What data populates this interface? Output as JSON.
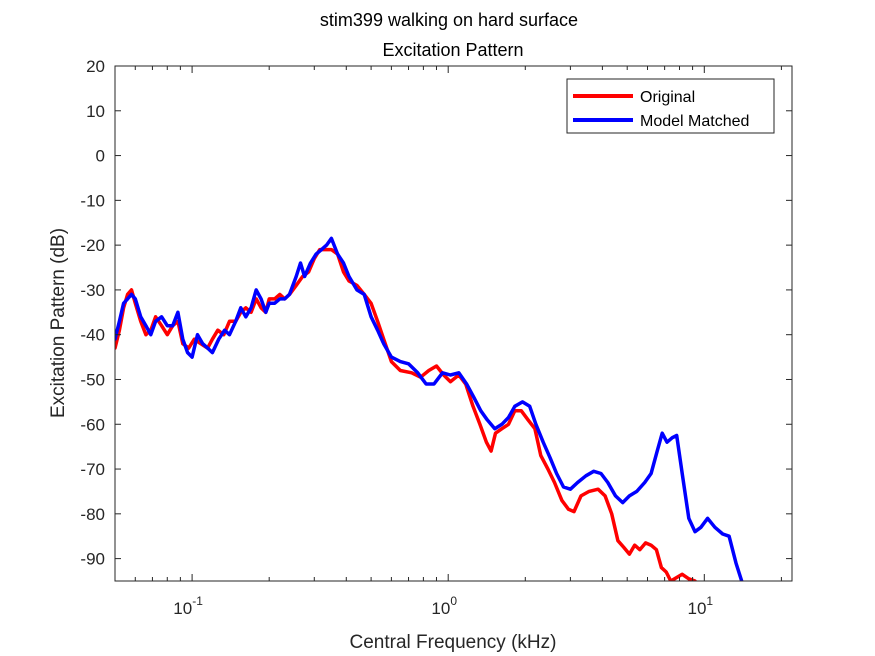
{
  "chart_data": {
    "type": "line",
    "title": "stim399 walking on hard surface",
    "subtitle": "Excitation Pattern",
    "xlabel": "Central Frequency (kHz)",
    "ylabel": "Excitation Pattern (dB)",
    "xscale": "log",
    "xlim": [
      0.05,
      22
    ],
    "ylim": [
      -95,
      20
    ],
    "x_ticks": [
      {
        "value": 0.1,
        "base": "10",
        "exp": "-1"
      },
      {
        "value": 1,
        "base": "10",
        "exp": "0"
      },
      {
        "value": 10,
        "base": "10",
        "exp": "1"
      }
    ],
    "y_ticks": [
      20,
      10,
      0,
      -10,
      -20,
      -30,
      -40,
      -50,
      -60,
      -70,
      -80,
      -90
    ],
    "grid": false,
    "legend_position": "top-right",
    "series": [
      {
        "name": "Original",
        "color": "#ff0000",
        "points": [
          [
            0.05,
            -43
          ],
          [
            0.052,
            -39
          ],
          [
            0.054,
            -34
          ],
          [
            0.056,
            -31
          ],
          [
            0.058,
            -30
          ],
          [
            0.06,
            -33
          ],
          [
            0.063,
            -37
          ],
          [
            0.066,
            -40
          ],
          [
            0.069,
            -39
          ],
          [
            0.072,
            -36
          ],
          [
            0.076,
            -38
          ],
          [
            0.08,
            -40
          ],
          [
            0.084,
            -38
          ],
          [
            0.088,
            -37
          ],
          [
            0.092,
            -42
          ],
          [
            0.097,
            -43
          ],
          [
            0.102,
            -41
          ],
          [
            0.108,
            -42
          ],
          [
            0.115,
            -43
          ],
          [
            0.12,
            -41
          ],
          [
            0.126,
            -39
          ],
          [
            0.133,
            -40
          ],
          [
            0.14,
            -37
          ],
          [
            0.148,
            -37
          ],
          [
            0.155,
            -35
          ],
          [
            0.162,
            -34
          ],
          [
            0.17,
            -35
          ],
          [
            0.178,
            -32
          ],
          [
            0.186,
            -34
          ],
          [
            0.194,
            -35
          ],
          [
            0.2,
            -32
          ],
          [
            0.21,
            -32
          ],
          [
            0.22,
            -31
          ],
          [
            0.23,
            -32
          ],
          [
            0.24,
            -31
          ],
          [
            0.255,
            -29
          ],
          [
            0.27,
            -27
          ],
          [
            0.285,
            -26
          ],
          [
            0.3,
            -23
          ],
          [
            0.315,
            -21
          ],
          [
            0.33,
            -21
          ],
          [
            0.35,
            -21
          ],
          [
            0.37,
            -22
          ],
          [
            0.39,
            -26
          ],
          [
            0.41,
            -28
          ],
          [
            0.44,
            -29
          ],
          [
            0.47,
            -31
          ],
          [
            0.5,
            -33
          ],
          [
            0.53,
            -37
          ],
          [
            0.56,
            -41
          ],
          [
            0.6,
            -46
          ],
          [
            0.65,
            -48
          ],
          [
            0.72,
            -48.5
          ],
          [
            0.78,
            -49.5
          ],
          [
            0.84,
            -48
          ],
          [
            0.9,
            -47
          ],
          [
            0.96,
            -49
          ],
          [
            1.02,
            -50.5
          ],
          [
            1.1,
            -49
          ],
          [
            1.17,
            -51
          ],
          [
            1.25,
            -56
          ],
          [
            1.33,
            -60
          ],
          [
            1.41,
            -64
          ],
          [
            1.47,
            -66
          ],
          [
            1.53,
            -62
          ],
          [
            1.62,
            -61
          ],
          [
            1.72,
            -60
          ],
          [
            1.82,
            -57
          ],
          [
            1.93,
            -57
          ],
          [
            2.05,
            -59
          ],
          [
            2.18,
            -61
          ],
          [
            2.3,
            -67
          ],
          [
            2.45,
            -70
          ],
          [
            2.6,
            -73
          ],
          [
            2.78,
            -77
          ],
          [
            2.95,
            -79
          ],
          [
            3.1,
            -79.5
          ],
          [
            3.3,
            -76
          ],
          [
            3.55,
            -75
          ],
          [
            3.85,
            -74.5
          ],
          [
            4.1,
            -76
          ],
          [
            4.35,
            -80
          ],
          [
            4.6,
            -86
          ],
          [
            4.85,
            -87.5
          ],
          [
            5.1,
            -89
          ],
          [
            5.35,
            -87
          ],
          [
            5.6,
            -88
          ],
          [
            5.9,
            -86.5
          ],
          [
            6.2,
            -87
          ],
          [
            6.5,
            -88
          ],
          [
            6.8,
            -92
          ],
          [
            7.1,
            -93
          ],
          [
            7.4,
            -95
          ],
          [
            8.2,
            -93.5
          ],
          [
            8.7,
            -94.5
          ],
          [
            9.2,
            -95
          ]
        ]
      },
      {
        "name": "Model Matched",
        "color": "#0000ff",
        "points": [
          [
            0.05,
            -41
          ],
          [
            0.052,
            -37
          ],
          [
            0.054,
            -33
          ],
          [
            0.056,
            -32
          ],
          [
            0.058,
            -31
          ],
          [
            0.06,
            -32
          ],
          [
            0.063,
            -36
          ],
          [
            0.066,
            -38
          ],
          [
            0.069,
            -40
          ],
          [
            0.072,
            -37
          ],
          [
            0.076,
            -36
          ],
          [
            0.08,
            -38
          ],
          [
            0.084,
            -38
          ],
          [
            0.088,
            -35
          ],
          [
            0.092,
            -41
          ],
          [
            0.096,
            -44
          ],
          [
            0.1,
            -45
          ],
          [
            0.105,
            -40
          ],
          [
            0.11,
            -42
          ],
          [
            0.115,
            -43
          ],
          [
            0.12,
            -44
          ],
          [
            0.127,
            -41
          ],
          [
            0.134,
            -39
          ],
          [
            0.14,
            -40
          ],
          [
            0.148,
            -37
          ],
          [
            0.155,
            -34
          ],
          [
            0.162,
            -36
          ],
          [
            0.17,
            -34
          ],
          [
            0.178,
            -30
          ],
          [
            0.186,
            -32
          ],
          [
            0.194,
            -35
          ],
          [
            0.2,
            -33
          ],
          [
            0.21,
            -33
          ],
          [
            0.22,
            -32
          ],
          [
            0.23,
            -32
          ],
          [
            0.24,
            -31
          ],
          [
            0.255,
            -27
          ],
          [
            0.265,
            -24
          ],
          [
            0.275,
            -27
          ],
          [
            0.29,
            -24
          ],
          [
            0.305,
            -22
          ],
          [
            0.32,
            -21
          ],
          [
            0.335,
            -20
          ],
          [
            0.35,
            -18.5
          ],
          [
            0.37,
            -22
          ],
          [
            0.39,
            -24
          ],
          [
            0.41,
            -27
          ],
          [
            0.44,
            -30
          ],
          [
            0.47,
            -31
          ],
          [
            0.5,
            -36
          ],
          [
            0.53,
            -39
          ],
          [
            0.56,
            -42
          ],
          [
            0.6,
            -45
          ],
          [
            0.65,
            -46
          ],
          [
            0.7,
            -46.5
          ],
          [
            0.76,
            -48.5
          ],
          [
            0.82,
            -51
          ],
          [
            0.88,
            -51
          ],
          [
            0.95,
            -48.5
          ],
          [
            1.02,
            -49
          ],
          [
            1.1,
            -48.5
          ],
          [
            1.18,
            -51
          ],
          [
            1.26,
            -54
          ],
          [
            1.34,
            -57
          ],
          [
            1.42,
            -59
          ],
          [
            1.52,
            -61
          ],
          [
            1.62,
            -60
          ],
          [
            1.72,
            -58.5
          ],
          [
            1.82,
            -56
          ],
          [
            1.95,
            -55
          ],
          [
            2.08,
            -56
          ],
          [
            2.2,
            -60
          ],
          [
            2.35,
            -64
          ],
          [
            2.5,
            -67.5
          ],
          [
            2.65,
            -71
          ],
          [
            2.82,
            -74
          ],
          [
            3.0,
            -74.5
          ],
          [
            3.2,
            -73
          ],
          [
            3.45,
            -71.5
          ],
          [
            3.7,
            -70.5
          ],
          [
            3.95,
            -71
          ],
          [
            4.2,
            -73
          ],
          [
            4.5,
            -76
          ],
          [
            4.8,
            -77.5
          ],
          [
            5.1,
            -76
          ],
          [
            5.45,
            -75
          ],
          [
            5.85,
            -73
          ],
          [
            6.2,
            -71
          ],
          [
            6.55,
            -66
          ],
          [
            6.85,
            -62
          ],
          [
            7.15,
            -64
          ],
          [
            7.5,
            -63
          ],
          [
            7.8,
            -62.5
          ],
          [
            8.2,
            -71
          ],
          [
            8.7,
            -81
          ],
          [
            9.2,
            -84
          ],
          [
            9.7,
            -83
          ],
          [
            10.3,
            -81
          ],
          [
            11.0,
            -83
          ],
          [
            11.8,
            -84.5
          ],
          [
            12.5,
            -85
          ],
          [
            13.3,
            -91
          ],
          [
            14.0,
            -95
          ]
        ]
      }
    ]
  }
}
